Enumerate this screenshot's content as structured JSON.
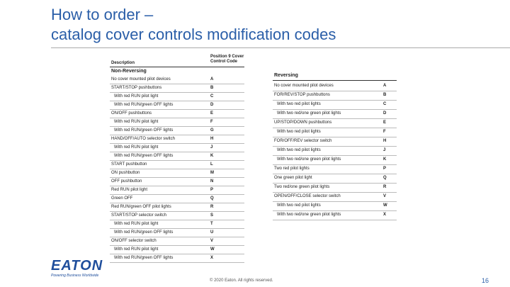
{
  "header": {
    "title_line1": "How to order –",
    "title_line2": "catalog cover controls modification codes"
  },
  "left_table": {
    "headers": [
      "Description",
      "Position 9 Cover Control Code"
    ],
    "section": "Non-Reversing",
    "rows": [
      [
        "No cover mounted pilot devices",
        "A"
      ],
      [
        "START/STOP pushbuttons",
        "B"
      ],
      [
        "With red RUN pilot light",
        "C"
      ],
      [
        "With red RUN/green OFF lights",
        "D"
      ],
      [
        "ON/OFF pushbuttons",
        "E"
      ],
      [
        "With red RUN pilot light",
        "F"
      ],
      [
        "With red RUN/green OFF lights",
        "G"
      ],
      [
        "HAND/OFF/AUTO selector switch",
        "H"
      ],
      [
        "With red RUN pilot light",
        "J"
      ],
      [
        "With red RUN/green OFF lights",
        "K"
      ],
      [
        "START pushbutton",
        "L"
      ],
      [
        "ON pushbutton",
        "M"
      ],
      [
        "OFF pushbutton",
        "N"
      ],
      [
        "Red RUN pilot light",
        "P"
      ],
      [
        "Green OFF",
        "Q"
      ],
      [
        "Red RUN/green OFF pilot lights",
        "R"
      ],
      [
        "START/STOP selector switch",
        "S"
      ],
      [
        "With red RUN pilot light",
        "T"
      ],
      [
        "With red RUN/green OFF lights",
        "U"
      ],
      [
        "ON/OFF selector switch",
        "V"
      ],
      [
        "With red RUN pilot light",
        "W"
      ],
      [
        "With red RUN/green OFF lights",
        "X"
      ]
    ]
  },
  "right_table": {
    "section": "Reversing",
    "rows": [
      [
        "No cover mounted pilot devices",
        "A"
      ],
      [
        "FOR/REV/STOP pushbuttons",
        "B"
      ],
      [
        "With two red pilot lights",
        "C"
      ],
      [
        "With two red/one green pilot lights",
        "D"
      ],
      [
        "UP/STOP/DOWN pushbuttons",
        "E"
      ],
      [
        "With two red pilot lights",
        "F"
      ],
      [
        "FOR/OFF/REV selector switch",
        "H"
      ],
      [
        "With two red pilot lights",
        "J"
      ],
      [
        "With two red/one green pilot lights",
        "K"
      ],
      [
        "Two red pilot lights",
        "P"
      ],
      [
        "One green pilot light",
        "Q"
      ],
      [
        "Two red/one green pilot lights",
        "R"
      ],
      [
        "OPEN/OFF/CLOSE selector switch",
        "V"
      ],
      [
        "With two red pilot lights",
        "W"
      ],
      [
        "With two red/one green pilot lights",
        "X"
      ]
    ]
  },
  "footer": {
    "logo": "EATON",
    "tagline": "Powering Business Worldwide",
    "copyright": "© 2020 Eaton. All rights reserved.",
    "page": "16"
  }
}
